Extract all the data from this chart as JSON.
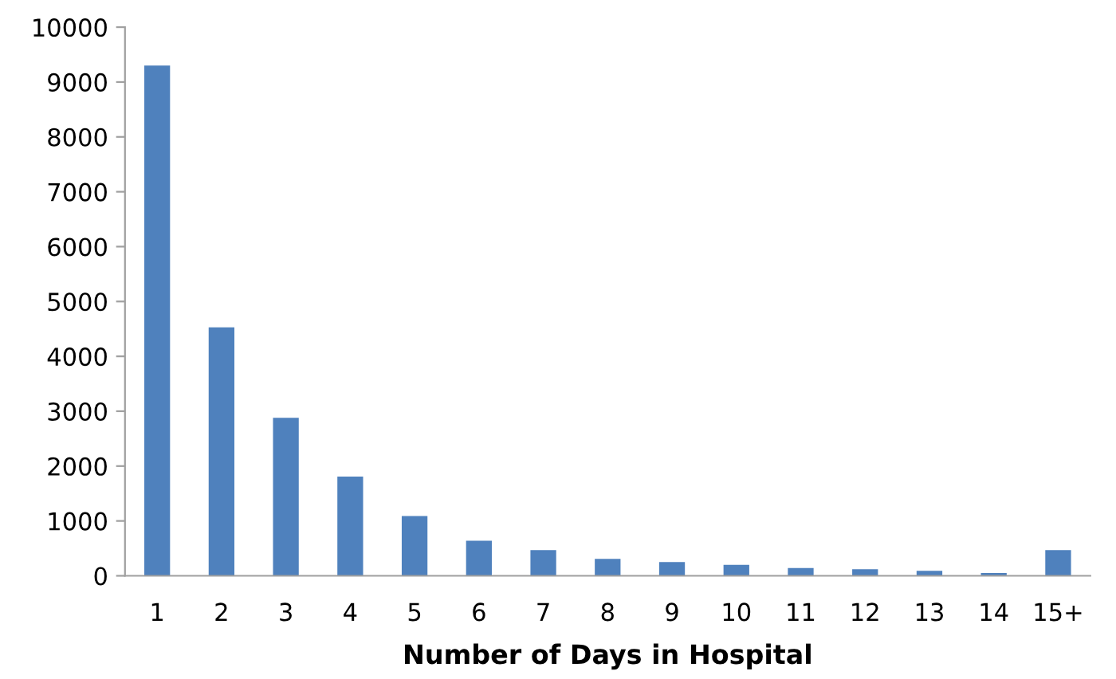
{
  "chart_data": {
    "type": "bar",
    "xlabel": "Number of Days in Hospital",
    "categories": [
      "1",
      "2",
      "3",
      "4",
      "5",
      "6",
      "7",
      "8",
      "9",
      "10",
      "11",
      "12",
      "13",
      "14",
      "15+"
    ],
    "values": [
      9300,
      4530,
      2880,
      1810,
      1090,
      640,
      470,
      310,
      250,
      200,
      140,
      120,
      90,
      50,
      470
    ],
    "color": "#4f81bd",
    "ylim": [
      0,
      10000
    ],
    "yticks": [
      0,
      1000,
      2000,
      3000,
      4000,
      5000,
      6000,
      7000,
      8000,
      9000,
      10000
    ],
    "grid": false,
    "legend": false
  }
}
